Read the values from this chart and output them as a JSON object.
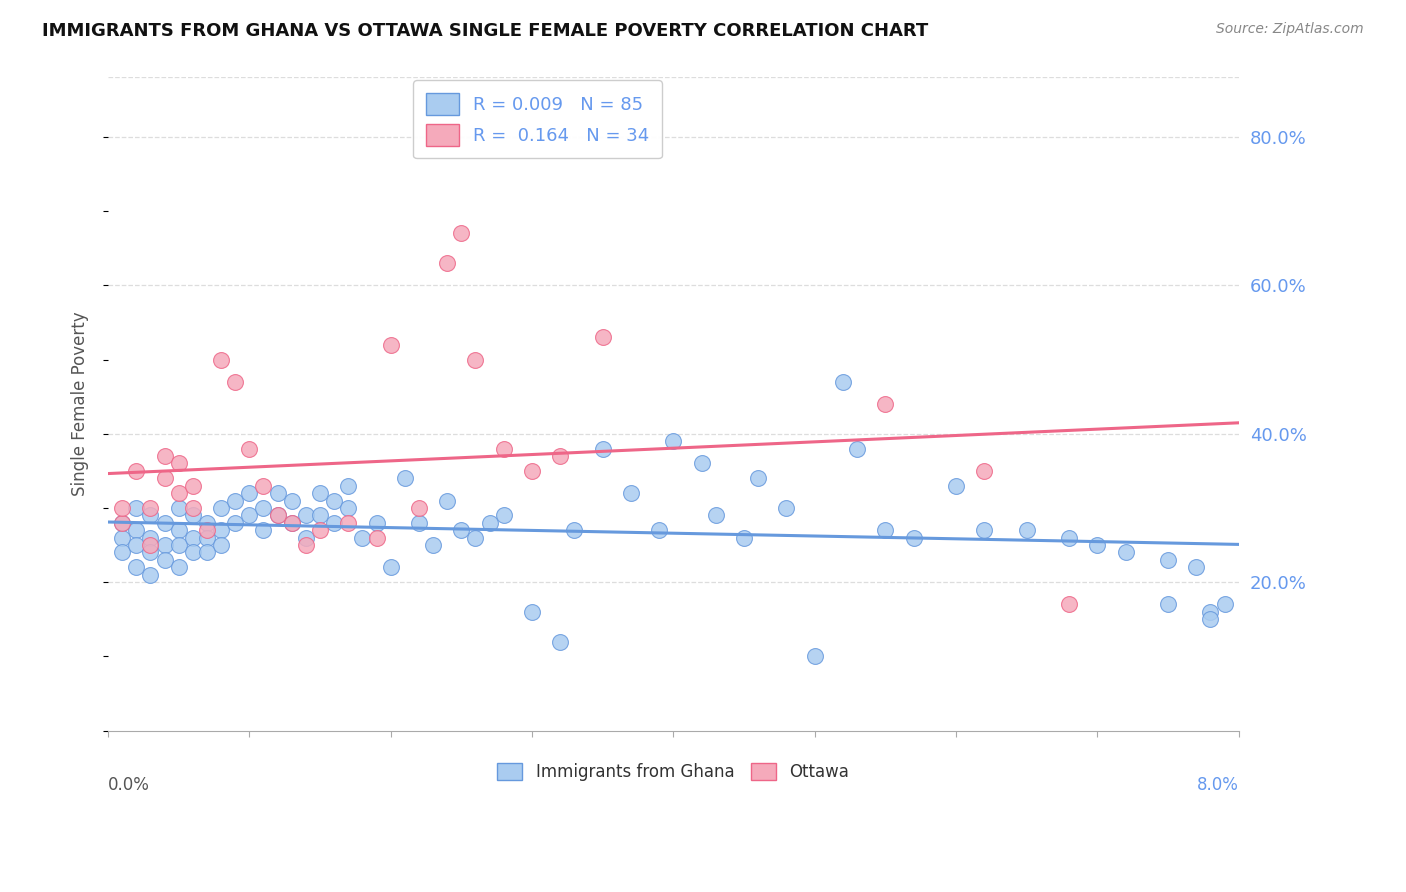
{
  "title": "IMMIGRANTS FROM GHANA VS OTTAWA SINGLE FEMALE POVERTY CORRELATION CHART",
  "source": "Source: ZipAtlas.com",
  "ylabel": "Single Female Poverty",
  "legend_label1": "Immigrants from Ghana",
  "legend_label2": "Ottawa",
  "R1": 0.009,
  "N1": 85,
  "R2": 0.164,
  "N2": 34,
  "color_blue": "#aaccf0",
  "color_pink": "#f5aabb",
  "line_blue": "#6699dd",
  "line_pink": "#ee6688",
  "ytick_values": [
    0.2,
    0.4,
    0.6,
    0.8
  ],
  "xmin": 0.0,
  "xmax": 0.08,
  "ymin": 0.0,
  "ymax": 0.88,
  "blue_x": [
    0.001,
    0.001,
    0.001,
    0.002,
    0.002,
    0.002,
    0.002,
    0.003,
    0.003,
    0.003,
    0.003,
    0.004,
    0.004,
    0.004,
    0.005,
    0.005,
    0.005,
    0.005,
    0.006,
    0.006,
    0.006,
    0.007,
    0.007,
    0.007,
    0.008,
    0.008,
    0.008,
    0.009,
    0.009,
    0.01,
    0.01,
    0.011,
    0.011,
    0.012,
    0.012,
    0.013,
    0.013,
    0.014,
    0.014,
    0.015,
    0.015,
    0.016,
    0.016,
    0.017,
    0.017,
    0.018,
    0.019,
    0.02,
    0.021,
    0.022,
    0.023,
    0.024,
    0.025,
    0.026,
    0.027,
    0.028,
    0.03,
    0.032,
    0.033,
    0.035,
    0.037,
    0.039,
    0.04,
    0.042,
    0.043,
    0.045,
    0.046,
    0.048,
    0.05,
    0.052,
    0.053,
    0.055,
    0.057,
    0.06,
    0.062,
    0.065,
    0.068,
    0.07,
    0.072,
    0.075,
    0.075,
    0.077,
    0.078,
    0.078,
    0.079
  ],
  "blue_y": [
    0.28,
    0.26,
    0.24,
    0.3,
    0.27,
    0.25,
    0.22,
    0.29,
    0.26,
    0.24,
    0.21,
    0.28,
    0.25,
    0.23,
    0.3,
    0.27,
    0.25,
    0.22,
    0.29,
    0.26,
    0.24,
    0.28,
    0.26,
    0.24,
    0.3,
    0.27,
    0.25,
    0.31,
    0.28,
    0.32,
    0.29,
    0.3,
    0.27,
    0.32,
    0.29,
    0.31,
    0.28,
    0.29,
    0.26,
    0.32,
    0.29,
    0.31,
    0.28,
    0.33,
    0.3,
    0.26,
    0.28,
    0.22,
    0.34,
    0.28,
    0.25,
    0.31,
    0.27,
    0.26,
    0.28,
    0.29,
    0.16,
    0.12,
    0.27,
    0.38,
    0.32,
    0.27,
    0.39,
    0.36,
    0.29,
    0.26,
    0.34,
    0.3,
    0.1,
    0.47,
    0.38,
    0.27,
    0.26,
    0.33,
    0.27,
    0.27,
    0.26,
    0.25,
    0.24,
    0.23,
    0.17,
    0.22,
    0.16,
    0.15,
    0.17
  ],
  "pink_x": [
    0.001,
    0.001,
    0.002,
    0.003,
    0.003,
    0.004,
    0.004,
    0.005,
    0.005,
    0.006,
    0.006,
    0.007,
    0.008,
    0.009,
    0.01,
    0.011,
    0.012,
    0.013,
    0.014,
    0.015,
    0.017,
    0.019,
    0.02,
    0.022,
    0.024,
    0.025,
    0.026,
    0.028,
    0.03,
    0.032,
    0.035,
    0.055,
    0.062,
    0.068
  ],
  "pink_y": [
    0.28,
    0.3,
    0.35,
    0.3,
    0.25,
    0.37,
    0.34,
    0.32,
    0.36,
    0.33,
    0.3,
    0.27,
    0.5,
    0.47,
    0.38,
    0.33,
    0.29,
    0.28,
    0.25,
    0.27,
    0.28,
    0.26,
    0.52,
    0.3,
    0.63,
    0.67,
    0.5,
    0.38,
    0.35,
    0.37,
    0.53,
    0.44,
    0.35,
    0.17
  ]
}
